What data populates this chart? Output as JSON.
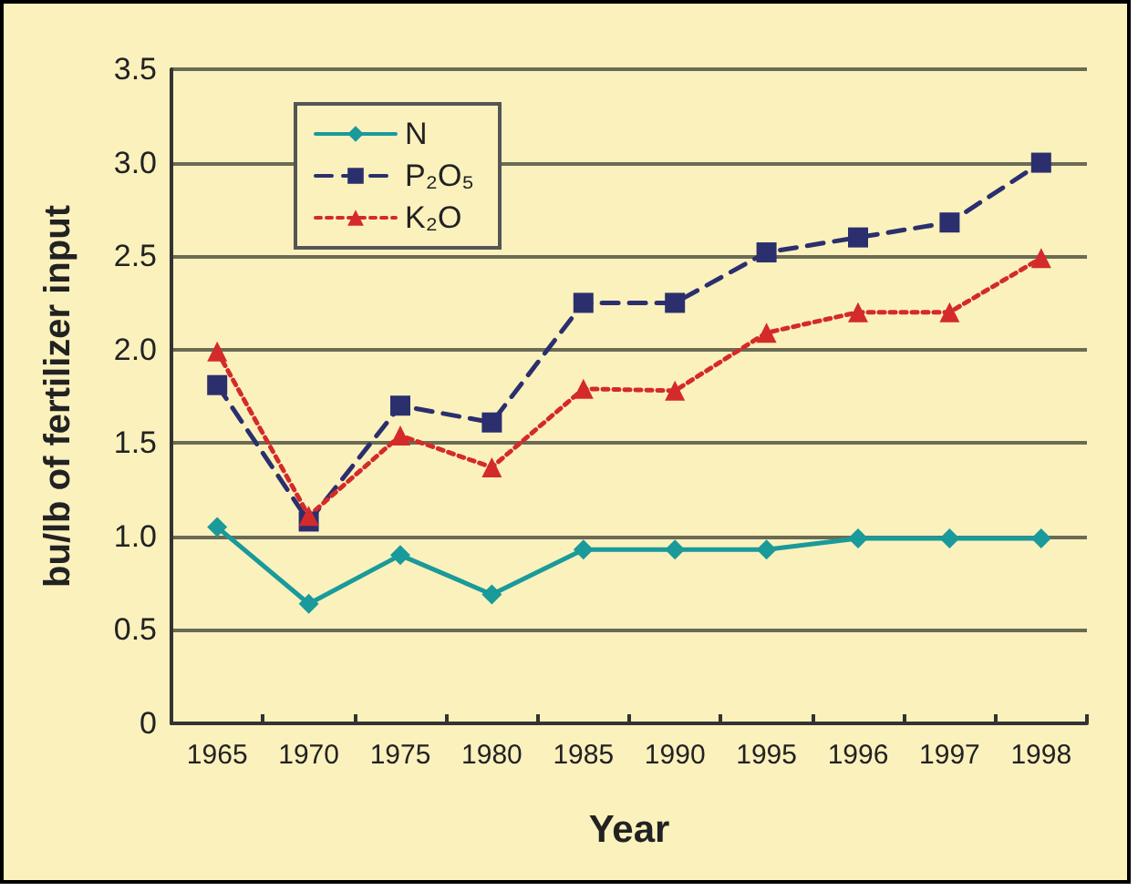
{
  "chart_data": {
    "type": "line",
    "xlabel": "Year",
    "ylabel": "bu/lb of fertilizer input",
    "categories": [
      "1965",
      "1970",
      "1975",
      "1980",
      "1985",
      "1990",
      "1995",
      "1996",
      "1997",
      "1998"
    ],
    "series": [
      {
        "name": "N",
        "color": "#1a9a9a",
        "marker": "diamond",
        "line_style": "solid",
        "values": [
          1.05,
          0.64,
          0.9,
          0.69,
          0.93,
          0.93,
          0.93,
          0.99,
          0.99,
          0.99
        ]
      },
      {
        "name": "P₂O₅",
        "color": "#2b2f6e",
        "marker": "square",
        "line_style": "dashed",
        "values": [
          1.81,
          1.08,
          1.7,
          1.61,
          2.25,
          2.25,
          2.52,
          2.6,
          2.68,
          3.0
        ]
      },
      {
        "name": "K₂O",
        "color": "#d42a2a",
        "marker": "triangle",
        "line_style": "dotted",
        "values": [
          1.99,
          1.11,
          1.54,
          1.37,
          1.79,
          1.78,
          2.09,
          2.2,
          2.2,
          2.49
        ]
      }
    ],
    "ylim": [
      0,
      3.5
    ],
    "yticks": [
      0,
      0.5,
      {
        "value": 1,
        "label": "1.0"
      },
      1.5,
      {
        "value": 2,
        "label": "2.0"
      },
      2.5,
      {
        "value": 3,
        "label": "3.0"
      },
      3.5
    ],
    "grid": "y",
    "legend": "top left"
  }
}
